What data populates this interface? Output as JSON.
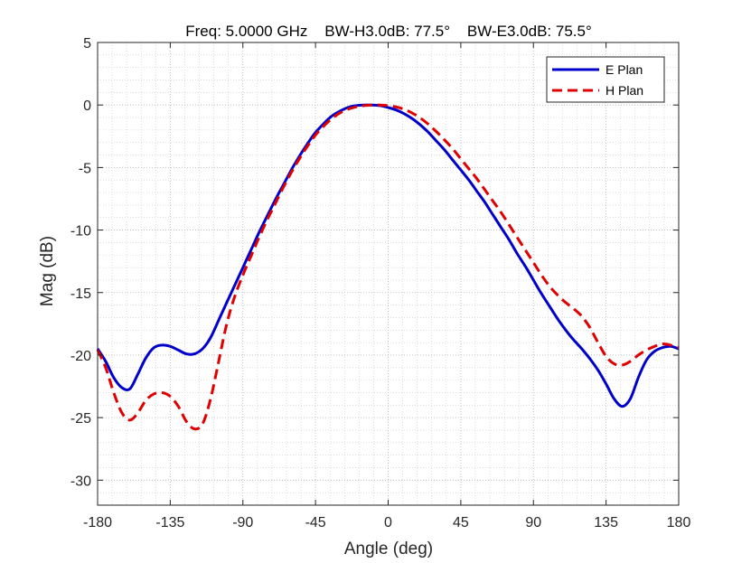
{
  "chart_data": {
    "type": "line",
    "title": "Freq: 5.0000 GHz    BW-H3.0dB: 77.5°    BW-E3.0dB: 75.5°",
    "xlabel": "Angle (deg)",
    "ylabel": "Mag (dB)",
    "xlim": [
      -180,
      180
    ],
    "ylim": [
      -32,
      5
    ],
    "xticks": [
      -180,
      -135,
      -90,
      -45,
      0,
      45,
      90,
      135,
      180
    ],
    "yticks": [
      5,
      0,
      -5,
      -10,
      -15,
      -20,
      -25,
      -30
    ],
    "grid": true,
    "minor_grid": true,
    "legend_position": "top-right",
    "series": [
      {
        "name": "E Plan",
        "color": "#0000cc",
        "style": "solid",
        "points": [
          [
            -180,
            -19.5
          ],
          [
            -175,
            -20.5
          ],
          [
            -170,
            -21.8
          ],
          [
            -165,
            -22.6
          ],
          [
            -160,
            -22.7
          ],
          [
            -155,
            -21.5
          ],
          [
            -150,
            -20.2
          ],
          [
            -145,
            -19.4
          ],
          [
            -140,
            -19.2
          ],
          [
            -135,
            -19.3
          ],
          [
            -130,
            -19.6
          ],
          [
            -125,
            -19.9
          ],
          [
            -120,
            -19.9
          ],
          [
            -115,
            -19.5
          ],
          [
            -110,
            -18.6
          ],
          [
            -105,
            -17.2
          ],
          [
            -100,
            -15.8
          ],
          [
            -95,
            -14.4
          ],
          [
            -90,
            -13.0
          ],
          [
            -85,
            -11.6
          ],
          [
            -80,
            -10.2
          ],
          [
            -75,
            -8.9
          ],
          [
            -70,
            -7.6
          ],
          [
            -65,
            -6.4
          ],
          [
            -60,
            -5.2
          ],
          [
            -55,
            -4.1
          ],
          [
            -50,
            -3.1
          ],
          [
            -45,
            -2.2
          ],
          [
            -40,
            -1.5
          ],
          [
            -35,
            -0.9
          ],
          [
            -30,
            -0.5
          ],
          [
            -25,
            -0.2
          ],
          [
            -20,
            -0.05
          ],
          [
            -15,
            0
          ],
          [
            -10,
            0
          ],
          [
            -5,
            -0.05
          ],
          [
            0,
            -0.2
          ],
          [
            5,
            -0.4
          ],
          [
            10,
            -0.7
          ],
          [
            15,
            -1.1
          ],
          [
            20,
            -1.6
          ],
          [
            25,
            -2.2
          ],
          [
            30,
            -2.9
          ],
          [
            35,
            -3.6
          ],
          [
            40,
            -4.4
          ],
          [
            45,
            -5.2
          ],
          [
            50,
            -6.0
          ],
          [
            55,
            -6.9
          ],
          [
            60,
            -7.8
          ],
          [
            65,
            -8.8
          ],
          [
            70,
            -9.8
          ],
          [
            75,
            -10.8
          ],
          [
            80,
            -11.9
          ],
          [
            85,
            -12.9
          ],
          [
            90,
            -14.0
          ],
          [
            95,
            -15.1
          ],
          [
            100,
            -16.1
          ],
          [
            105,
            -17.1
          ],
          [
            110,
            -18.0
          ],
          [
            115,
            -18.8
          ],
          [
            120,
            -19.5
          ],
          [
            125,
            -20.3
          ],
          [
            130,
            -21.2
          ],
          [
            135,
            -22.3
          ],
          [
            140,
            -23.5
          ],
          [
            145,
            -24.1
          ],
          [
            150,
            -23.5
          ],
          [
            155,
            -21.8
          ],
          [
            160,
            -20.4
          ],
          [
            165,
            -19.7
          ],
          [
            170,
            -19.4
          ],
          [
            175,
            -19.3
          ],
          [
            180,
            -19.5
          ]
        ]
      },
      {
        "name": "H Plan",
        "color": "#e00000",
        "style": "dashed",
        "points": [
          [
            -180,
            -19.6
          ],
          [
            -175,
            -21.0
          ],
          [
            -170,
            -23.0
          ],
          [
            -165,
            -24.6
          ],
          [
            -160,
            -25.2
          ],
          [
            -155,
            -24.6
          ],
          [
            -150,
            -23.6
          ],
          [
            -145,
            -23.1
          ],
          [
            -140,
            -23.0
          ],
          [
            -135,
            -23.3
          ],
          [
            -130,
            -24.1
          ],
          [
            -125,
            -25.3
          ],
          [
            -120,
            -25.9
          ],
          [
            -115,
            -25.5
          ],
          [
            -110,
            -23.5
          ],
          [
            -105,
            -20.5
          ],
          [
            -100,
            -17.5
          ],
          [
            -95,
            -15.3
          ],
          [
            -90,
            -13.6
          ],
          [
            -85,
            -12.1
          ],
          [
            -80,
            -10.6
          ],
          [
            -75,
            -9.2
          ],
          [
            -70,
            -7.9
          ],
          [
            -65,
            -6.6
          ],
          [
            -60,
            -5.4
          ],
          [
            -55,
            -4.3
          ],
          [
            -50,
            -3.3
          ],
          [
            -45,
            -2.4
          ],
          [
            -40,
            -1.7
          ],
          [
            -35,
            -1.1
          ],
          [
            -30,
            -0.65
          ],
          [
            -25,
            -0.35
          ],
          [
            -20,
            -0.15
          ],
          [
            -15,
            -0.05
          ],
          [
            -10,
            0
          ],
          [
            -5,
            0
          ],
          [
            0,
            -0.05
          ],
          [
            5,
            -0.15
          ],
          [
            10,
            -0.35
          ],
          [
            15,
            -0.65
          ],
          [
            20,
            -1.05
          ],
          [
            25,
            -1.55
          ],
          [
            30,
            -2.15
          ],
          [
            35,
            -2.8
          ],
          [
            40,
            -3.5
          ],
          [
            45,
            -4.3
          ],
          [
            50,
            -5.1
          ],
          [
            55,
            -5.9
          ],
          [
            60,
            -6.8
          ],
          [
            65,
            -7.7
          ],
          [
            70,
            -8.6
          ],
          [
            75,
            -9.6
          ],
          [
            80,
            -10.6
          ],
          [
            85,
            -11.6
          ],
          [
            90,
            -12.6
          ],
          [
            95,
            -13.6
          ],
          [
            100,
            -14.5
          ],
          [
            105,
            -15.2
          ],
          [
            110,
            -15.8
          ],
          [
            115,
            -16.3
          ],
          [
            120,
            -16.9
          ],
          [
            125,
            -17.8
          ],
          [
            130,
            -19.0
          ],
          [
            135,
            -20.1
          ],
          [
            140,
            -20.7
          ],
          [
            145,
            -20.8
          ],
          [
            150,
            -20.5
          ],
          [
            155,
            -20.0
          ],
          [
            160,
            -19.6
          ],
          [
            165,
            -19.3
          ],
          [
            170,
            -19.1
          ],
          [
            175,
            -19.2
          ],
          [
            180,
            -19.4
          ]
        ]
      }
    ]
  }
}
